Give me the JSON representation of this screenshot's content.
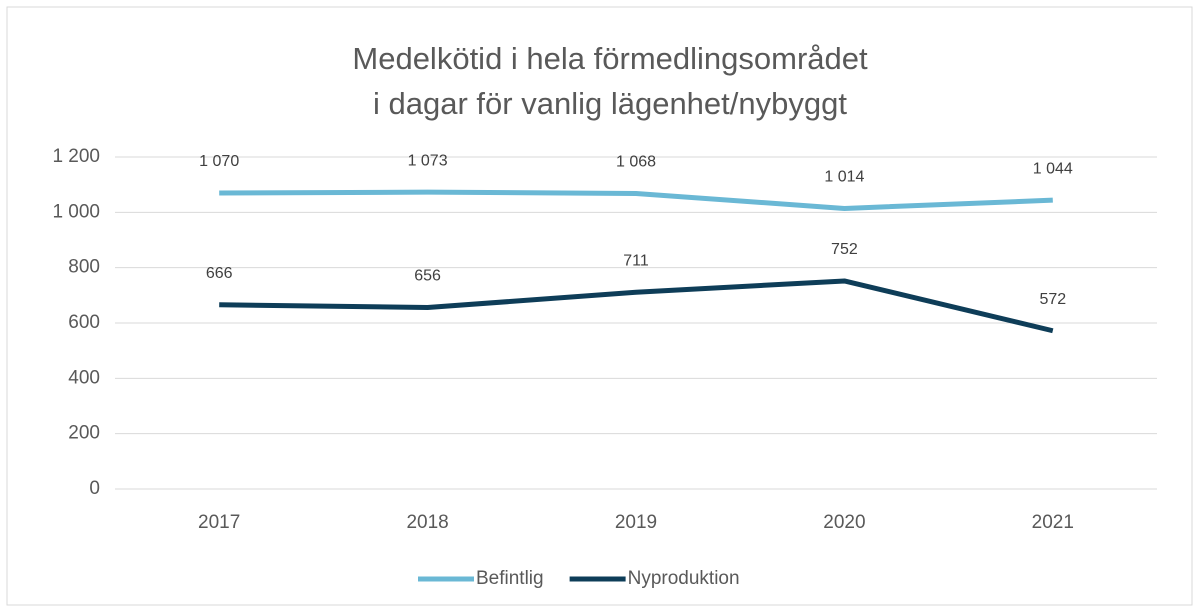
{
  "chart_data": {
    "type": "line",
    "title": [
      "Medelkötid i hela förmedlingsområdet",
      "i dagar för vanlig lägenhet/nybyggt"
    ],
    "categories": [
      "2017",
      "2018",
      "2019",
      "2020",
      "2021"
    ],
    "series": [
      {
        "name": "Befintlig",
        "color": "#6ab8d5",
        "values": [
          1070,
          1073,
          1068,
          1014,
          1044
        ],
        "value_labels": [
          "1 070",
          "1 073",
          "1 068",
          "1 014",
          "1 044"
        ]
      },
      {
        "name": "Nyproduktion",
        "color": "#0e3d58",
        "values": [
          666,
          656,
          711,
          752,
          572
        ],
        "value_labels": [
          "666",
          "656",
          "711",
          "752",
          "572"
        ]
      }
    ],
    "ylim": [
      0,
      1200
    ],
    "yticks": [
      0,
      200,
      400,
      600,
      800,
      {
        "value": 1000,
        "label": "1 000"
      },
      {
        "value": 1200,
        "label": "1 200"
      }
    ],
    "grid": true,
    "legend": "bottom"
  }
}
